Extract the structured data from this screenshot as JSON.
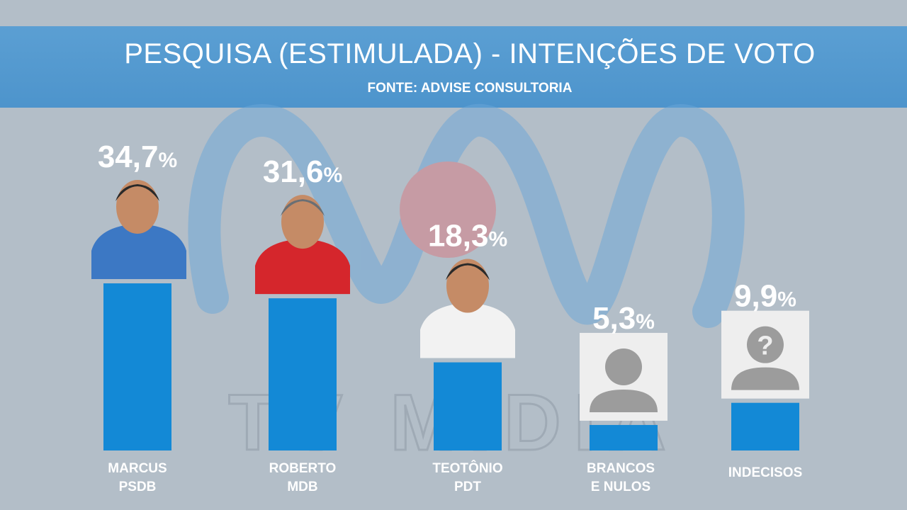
{
  "header": {
    "title": "PESQUISA (ESTIMULADA) - INTENÇÕES DE VOTO",
    "subtitle": "FONTE: ADVISE CONSULTORIA"
  },
  "watermark": {
    "text": "TV MIDIA"
  },
  "colors": {
    "bar": "#1389d6",
    "header": "#4d94cc",
    "background": "#b3bec8"
  },
  "chart_data": {
    "type": "bar",
    "title": "PESQUISA (ESTIMULADA) - INTENÇÕES DE VOTO",
    "subtitle": "FONTE: ADVISE CONSULTORIA",
    "value_suffix": "%",
    "categories": [
      [
        "MARCUS",
        "PSDB"
      ],
      [
        "ROBERTO",
        "MDB"
      ],
      [
        "TEOTÔNIO",
        "PDT"
      ],
      [
        "BRANCOS",
        "E NULOS"
      ],
      [
        "INDECISOS"
      ]
    ],
    "values": [
      34.7,
      31.6,
      18.3,
      5.3,
      9.9
    ],
    "value_labels": [
      "34,7",
      "31,6",
      "18,3",
      "5,3",
      "9,9"
    ],
    "images": [
      "candidate-photo",
      "candidate-photo",
      "candidate-photo",
      "person-placeholder-icon",
      "question-person-icon"
    ],
    "ylim": [
      0,
      45
    ]
  }
}
